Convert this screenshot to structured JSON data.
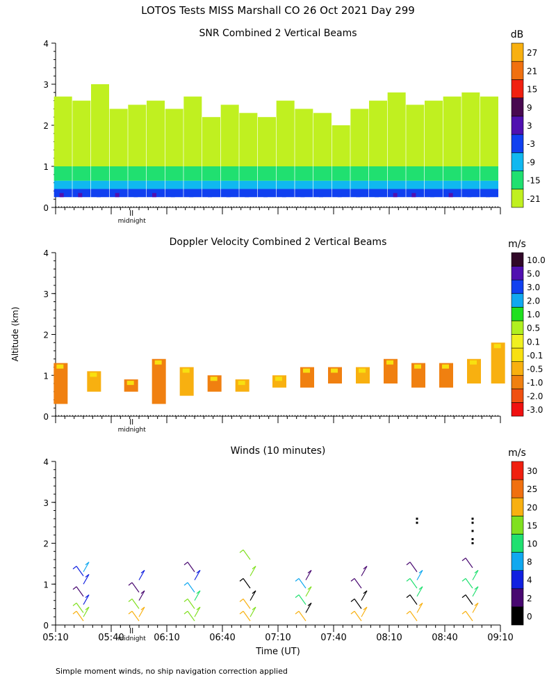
{
  "figure_title": "LOTOS Tests MISS Marshall CO  26 Oct 2021 Day 299",
  "y_axis_label": "Altitude (km)",
  "footnote": "Simple moment winds, no ship navigation correction applied",
  "midnight_label": "midnight",
  "chart_data": [
    {
      "type": "heatmap",
      "title": "SNR Combined 2 Vertical Beams",
      "colorbar": {
        "unit": "dB",
        "levels": [
          "-21",
          "-15",
          "-9",
          "-3",
          "3",
          "9",
          "15",
          "21",
          "27"
        ],
        "colors": [
          "#c0f020",
          "#20e070",
          "#10b8f0",
          "#1040f0",
          "#5010b0",
          "#480850",
          "#f02010",
          "#f07010",
          "#f8b010"
        ]
      },
      "ylim": [
        0,
        4
      ],
      "yticks": [
        "0",
        "1",
        "2",
        "3",
        "4"
      ],
      "xlim": [
        "05:10",
        "09:10"
      ],
      "profiles": [
        {
          "time": "05:14",
          "top_km": 2.7,
          "max_db": 3
        },
        {
          "time": "05:24",
          "top_km": 2.6,
          "max_db": 3
        },
        {
          "time": "05:34",
          "top_km": 3.0,
          "max_db": 0
        },
        {
          "time": "05:44",
          "top_km": 2.4,
          "max_db": 3
        },
        {
          "time": "05:54",
          "top_km": 2.5,
          "max_db": -3
        },
        {
          "time": "06:04",
          "top_km": 2.6,
          "max_db": 3
        },
        {
          "time": "06:14",
          "top_km": 2.4,
          "max_db": 0
        },
        {
          "time": "06:24",
          "top_km": 2.7,
          "max_db": -3
        },
        {
          "time": "06:34",
          "top_km": 2.2,
          "max_db": -3
        },
        {
          "time": "06:44",
          "top_km": 2.5,
          "max_db": 0
        },
        {
          "time": "06:54",
          "top_km": 2.3,
          "max_db": -3
        },
        {
          "time": "07:04",
          "top_km": 2.2,
          "max_db": -3
        },
        {
          "time": "07:14",
          "top_km": 2.6,
          "max_db": 0
        },
        {
          "time": "07:24",
          "top_km": 2.4,
          "max_db": -3
        },
        {
          "time": "07:34",
          "top_km": 2.3,
          "max_db": -3
        },
        {
          "time": "07:44",
          "top_km": 2.0,
          "max_db": -3
        },
        {
          "time": "07:54",
          "top_km": 2.4,
          "max_db": -3
        },
        {
          "time": "08:04",
          "top_km": 2.6,
          "max_db": 0
        },
        {
          "time": "08:14",
          "top_km": 2.8,
          "max_db": 3
        },
        {
          "time": "08:24",
          "top_km": 2.5,
          "max_db": 3
        },
        {
          "time": "08:34",
          "top_km": 2.6,
          "max_db": 0
        },
        {
          "time": "08:44",
          "top_km": 2.7,
          "max_db": 3
        },
        {
          "time": "08:54",
          "top_km": 2.8,
          "max_db": 0
        },
        {
          "time": "09:04",
          "top_km": 2.7,
          "max_db": 0
        }
      ]
    },
    {
      "type": "heatmap",
      "title": "Doppler Velocity Combined 2 Vertical Beams",
      "colorbar": {
        "unit": "m/s",
        "levels": [
          "-3.0",
          "-2.0",
          "-1.0",
          "-0.5",
          "-0.1",
          "0.1",
          "0.5",
          "1.0",
          "2.0",
          "3.0",
          "5.0",
          "10.0"
        ],
        "colors": [
          "#f01010",
          "#f05010",
          "#f08010",
          "#f8b010",
          "#f8e010",
          "#f0f020",
          "#b0f020",
          "#20e020",
          "#10a8f0",
          "#1040f0",
          "#5010b0",
          "#300828"
        ]
      },
      "ylim": [
        0,
        4
      ],
      "yticks": [
        "0",
        "1",
        "2",
        "3",
        "4"
      ],
      "xlim": [
        "05:10",
        "09:10"
      ],
      "cloud_layer": [
        {
          "time": "05:12",
          "bottom_km": 0.3,
          "top_km": 1.3,
          "velocity_ms": -1.0
        },
        {
          "time": "05:30",
          "bottom_km": 0.6,
          "top_km": 1.1,
          "velocity_ms": -0.5
        },
        {
          "time": "05:50",
          "bottom_km": 0.6,
          "top_km": 0.9,
          "velocity_ms": -1.0
        },
        {
          "time": "06:05",
          "bottom_km": 0.3,
          "top_km": 1.4,
          "velocity_ms": -1.0
        },
        {
          "time": "06:20",
          "bottom_km": 0.5,
          "top_km": 1.2,
          "velocity_ms": -0.5
        },
        {
          "time": "06:35",
          "bottom_km": 0.6,
          "top_km": 1.0,
          "velocity_ms": -1.0
        },
        {
          "time": "06:50",
          "bottom_km": 0.6,
          "top_km": 0.9,
          "velocity_ms": -0.5
        },
        {
          "time": "07:10",
          "bottom_km": 0.7,
          "top_km": 1.0,
          "velocity_ms": -0.5
        },
        {
          "time": "07:25",
          "bottom_km": 0.7,
          "top_km": 1.2,
          "velocity_ms": -1.0
        },
        {
          "time": "07:40",
          "bottom_km": 0.8,
          "top_km": 1.2,
          "velocity_ms": -1.0
        },
        {
          "time": "07:55",
          "bottom_km": 0.8,
          "top_km": 1.2,
          "velocity_ms": -0.5
        },
        {
          "time": "08:10",
          "bottom_km": 0.8,
          "top_km": 1.4,
          "velocity_ms": -1.0
        },
        {
          "time": "08:25",
          "bottom_km": 0.7,
          "top_km": 1.3,
          "velocity_ms": -1.0
        },
        {
          "time": "08:40",
          "bottom_km": 0.7,
          "top_km": 1.3,
          "velocity_ms": -1.0
        },
        {
          "time": "08:55",
          "bottom_km": 0.8,
          "top_km": 1.4,
          "velocity_ms": -0.5
        },
        {
          "time": "09:08",
          "bottom_km": 0.8,
          "top_km": 1.8,
          "velocity_ms": -0.5
        }
      ]
    },
    {
      "type": "scatter",
      "title": "Winds (10 minutes)",
      "colorbar": {
        "unit": "m/s",
        "levels": [
          "0",
          "2",
          "4",
          "8",
          "10",
          "15",
          "20",
          "25",
          "30"
        ],
        "colors": [
          "#000000",
          "#480870",
          "#1020e0",
          "#10a8f0",
          "#20e070",
          "#80e020",
          "#f8b010",
          "#f07010",
          "#f02010"
        ]
      },
      "ylim": [
        0,
        4
      ],
      "yticks": [
        "0",
        "1",
        "2",
        "3",
        "4"
      ],
      "xlabel": "Time (UT)",
      "xticks": [
        "05:10",
        "05:40",
        "06:10",
        "06:40",
        "07:10",
        "07:40",
        "08:10",
        "08:40",
        "09:10"
      ],
      "wind_profiles": [
        {
          "time": "05:25",
          "barbs": [
            {
              "alt_km": 0.1,
              "speed_ms": 20
            },
            {
              "alt_km": 0.2,
              "speed_ms": 18
            },
            {
              "alt_km": 0.3,
              "speed_ms": 15
            },
            {
              "alt_km": 0.5,
              "speed_ms": 5
            },
            {
              "alt_km": 0.7,
              "speed_ms": 3
            },
            {
              "alt_km": 1.0,
              "speed_ms": 4
            },
            {
              "alt_km": 1.2,
              "speed_ms": 6
            },
            {
              "alt_km": 1.3,
              "speed_ms": 9
            }
          ]
        },
        {
          "time": "05:55",
          "barbs": [
            {
              "alt_km": 0.1,
              "speed_ms": 21
            },
            {
              "alt_km": 0.2,
              "speed_ms": 20
            },
            {
              "alt_km": 0.4,
              "speed_ms": 19
            },
            {
              "alt_km": 0.6,
              "speed_ms": 3
            },
            {
              "alt_km": 0.8,
              "speed_ms": 3
            },
            {
              "alt_km": 1.1,
              "speed_ms": 4
            }
          ]
        },
        {
          "time": "06:25",
          "barbs": [
            {
              "alt_km": 0.1,
              "speed_ms": 16
            },
            {
              "alt_km": 0.2,
              "speed_ms": 17
            },
            {
              "alt_km": 0.4,
              "speed_ms": 15
            },
            {
              "alt_km": 0.6,
              "speed_ms": 10
            },
            {
              "alt_km": 0.8,
              "speed_ms": 9
            },
            {
              "alt_km": 1.1,
              "speed_ms": 5
            },
            {
              "alt_km": 1.3,
              "speed_ms": 3
            }
          ]
        },
        {
          "time": "06:55",
          "barbs": [
            {
              "alt_km": 0.1,
              "speed_ms": 20
            },
            {
              "alt_km": 0.2,
              "speed_ms": 19
            },
            {
              "alt_km": 0.4,
              "speed_ms": 21
            },
            {
              "alt_km": 0.6,
              "speed_ms": 1
            },
            {
              "alt_km": 0.9,
              "speed_ms": 1
            },
            {
              "alt_km": 1.2,
              "speed_ms": 15
            },
            {
              "alt_km": 1.6,
              "speed_ms": 16
            }
          ]
        },
        {
          "time": "07:25",
          "barbs": [
            {
              "alt_km": 0.1,
              "speed_ms": 21
            },
            {
              "alt_km": 0.3,
              "speed_ms": 0
            },
            {
              "alt_km": 0.5,
              "speed_ms": 12
            },
            {
              "alt_km": 0.7,
              "speed_ms": 16
            },
            {
              "alt_km": 0.9,
              "speed_ms": 9
            },
            {
              "alt_km": 1.1,
              "speed_ms": 2
            }
          ]
        },
        {
          "time": "07:55",
          "barbs": [
            {
              "alt_km": 0.1,
              "speed_ms": 21
            },
            {
              "alt_km": 0.2,
              "speed_ms": 20
            },
            {
              "alt_km": 0.4,
              "speed_ms": 1
            },
            {
              "alt_km": 0.6,
              "speed_ms": 1
            },
            {
              "alt_km": 0.9,
              "speed_ms": 2
            },
            {
              "alt_km": 1.2,
              "speed_ms": 2
            }
          ]
        },
        {
          "time": "08:25",
          "barbs": [
            {
              "alt_km": 0.1,
              "speed_ms": 22
            },
            {
              "alt_km": 0.3,
              "speed_ms": 20
            },
            {
              "alt_km": 0.5,
              "speed_ms": 1
            },
            {
              "alt_km": 0.7,
              "speed_ms": 12
            },
            {
              "alt_km": 0.9,
              "speed_ms": 10
            },
            {
              "alt_km": 1.1,
              "speed_ms": 9
            },
            {
              "alt_km": 1.3,
              "speed_ms": 3
            }
          ]
        },
        {
          "time": "08:55",
          "barbs": [
            {
              "alt_km": 0.1,
              "speed_ms": 22
            },
            {
              "alt_km": 0.3,
              "speed_ms": 21
            },
            {
              "alt_km": 0.5,
              "speed_ms": 1
            },
            {
              "alt_km": 0.7,
              "speed_ms": 12
            },
            {
              "alt_km": 0.9,
              "speed_ms": 11
            },
            {
              "alt_km": 1.1,
              "speed_ms": 10
            },
            {
              "alt_km": 1.4,
              "speed_ms": 3
            }
          ]
        }
      ],
      "sparse_points": [
        {
          "time": "08:25",
          "alt_km": 2.5
        },
        {
          "time": "08:25",
          "alt_km": 2.6
        },
        {
          "time": "08:55",
          "alt_km": 2.0
        },
        {
          "time": "08:55",
          "alt_km": 2.1
        },
        {
          "time": "08:55",
          "alt_km": 2.3
        },
        {
          "time": "08:55",
          "alt_km": 2.5
        },
        {
          "time": "08:55",
          "alt_km": 2.6
        }
      ]
    }
  ]
}
